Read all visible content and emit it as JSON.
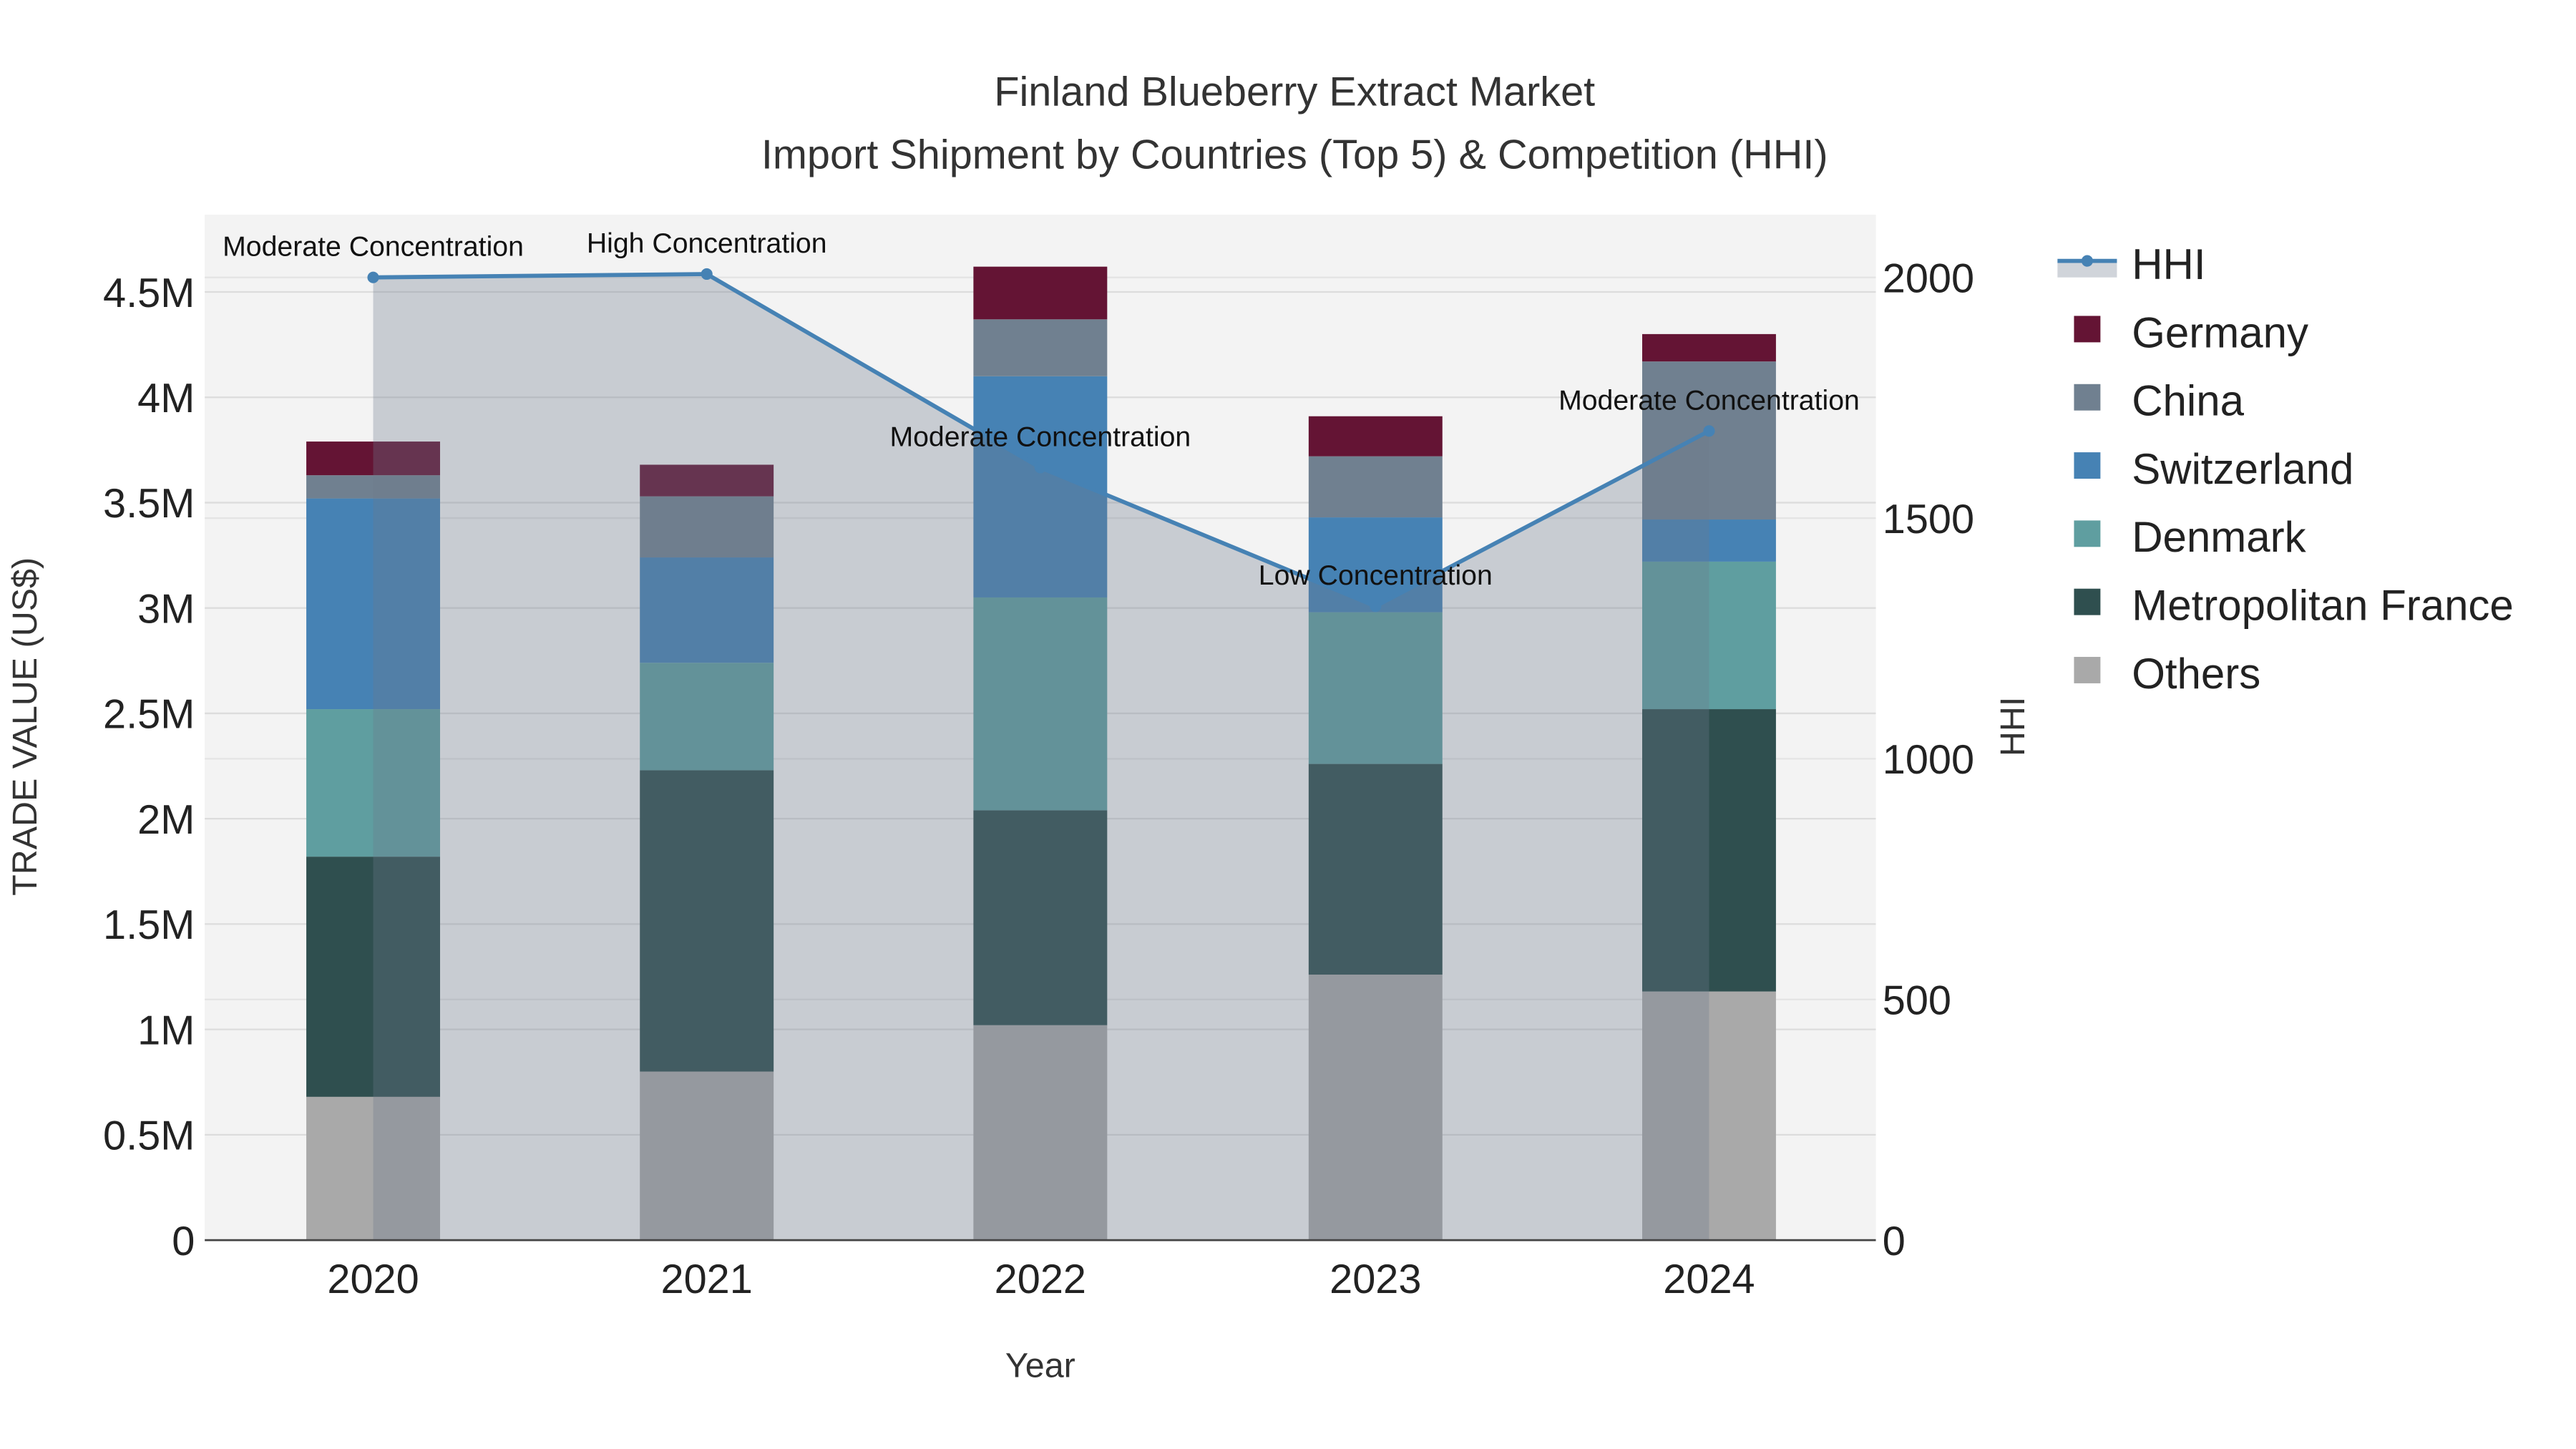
{
  "chart_data": {
    "type": "bar",
    "title": "Finland Blueberry Extract Market",
    "subtitle": "Import Shipment by Countries (Top 5) & Competition (HHI)",
    "xlabel": "Year",
    "ylabel": "TRADE VALUE (US$)",
    "y2label": "HHI",
    "categories": [
      "2020",
      "2021",
      "2022",
      "2023",
      "2024"
    ],
    "ylim": [
      0,
      4.85
    ],
    "y2lim": [
      0,
      2125
    ],
    "yticks": [
      0,
      0.5,
      1,
      1.5,
      2,
      2.5,
      3,
      3.5,
      4,
      4.5
    ],
    "ytick_labels": [
      "0",
      "0.5M",
      "1M",
      "1.5M",
      "2M",
      "2.5M",
      "3M",
      "3.5M",
      "4M",
      "4.5M"
    ],
    "y2ticks": [
      0,
      500,
      1000,
      1500,
      2000
    ],
    "y2tick_labels": [
      "0",
      "500",
      "1000",
      "1500",
      "2000"
    ],
    "stacked": true,
    "unit": "million US$",
    "series": [
      {
        "name": "Others",
        "color": "#a9a9a9",
        "values": [
          0.68,
          0.8,
          1.02,
          1.26,
          1.18
        ]
      },
      {
        "name": "Metropolitan France",
        "color": "#2f4f4f",
        "values": [
          1.14,
          1.43,
          1.02,
          1.0,
          1.34
        ]
      },
      {
        "name": "Denmark",
        "color": "#5f9ea0",
        "values": [
          0.7,
          0.51,
          1.01,
          0.72,
          0.7
        ]
      },
      {
        "name": "Switzerland",
        "color": "#4682b4",
        "values": [
          1.0,
          0.5,
          1.05,
          0.45,
          0.2
        ]
      },
      {
        "name": "China",
        "color": "#708090",
        "values": [
          0.11,
          0.29,
          0.27,
          0.29,
          0.75
        ]
      },
      {
        "name": "Germany",
        "color": "#641434",
        "values": [
          0.16,
          0.15,
          0.25,
          0.19,
          0.13
        ]
      }
    ],
    "hhi": {
      "name": "HHI",
      "color": "#4682b4",
      "values": [
        2000,
        2007,
        1605,
        1317,
        1681
      ],
      "annotations": [
        "Moderate Concentration",
        "High Concentration",
        "Moderate Concentration",
        "Low Concentration",
        "Moderate Concentration"
      ]
    },
    "legend_order": [
      "HHI",
      "Germany",
      "China",
      "Switzerland",
      "Denmark",
      "Metropolitan France",
      "Others"
    ],
    "legend_position": "right",
    "grid": true
  }
}
